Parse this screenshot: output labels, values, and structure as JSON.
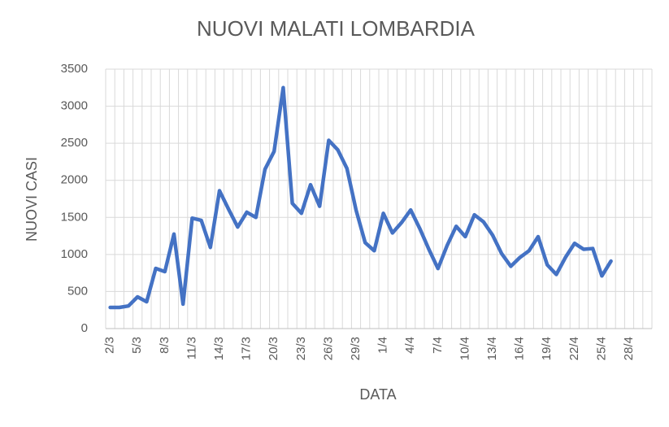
{
  "chart_data": {
    "type": "line",
    "title": "NUOVI MALATI LOMBARDIA",
    "x_label": "DATA",
    "y_label": "NUOVI CASI",
    "categories": [
      "2/3",
      null,
      null,
      "5/3",
      null,
      null,
      "8/3",
      null,
      null,
      "11/3",
      null,
      null,
      "14/3",
      null,
      null,
      "17/3",
      null,
      null,
      "20/3",
      null,
      null,
      "23/3",
      null,
      null,
      "26/3",
      null,
      null,
      "29/3",
      null,
      null,
      "1/4",
      null,
      null,
      "4/4",
      null,
      null,
      "7/4",
      null,
      null,
      "10/4",
      null,
      null,
      "13/4",
      null,
      null,
      "16/4",
      null,
      null,
      "19/4",
      null,
      null,
      "22/4",
      null,
      null,
      "25/4",
      null,
      null,
      "28/4",
      null,
      null
    ],
    "series": [
      {
        "name": "NUOVI CASI",
        "color": "#4472c4",
        "values": [
          285,
          285,
          305,
          428,
          362,
          812,
          768,
          1275,
          330,
          1490,
          1460,
          1095,
          1860,
          1610,
          1370,
          1570,
          1500,
          2150,
          2390,
          3250,
          1690,
          1555,
          1940,
          1650,
          2540,
          2410,
          2160,
          1600,
          1160,
          1050,
          1555,
          1290,
          1430,
          1600,
          1350,
          1070,
          810,
          1120,
          1380,
          1240,
          1535,
          1440,
          1260,
          1010,
          840,
          960,
          1050,
          1240,
          860,
          730,
          960,
          1150,
          1070,
          1080,
          710,
          910,
          null,
          null,
          null,
          null
        ]
      }
    ],
    "ylim": [
      0,
      3500
    ],
    "yticks": [
      0,
      500,
      1000,
      1500,
      2000,
      2500,
      3000,
      3500
    ],
    "grid": true
  }
}
